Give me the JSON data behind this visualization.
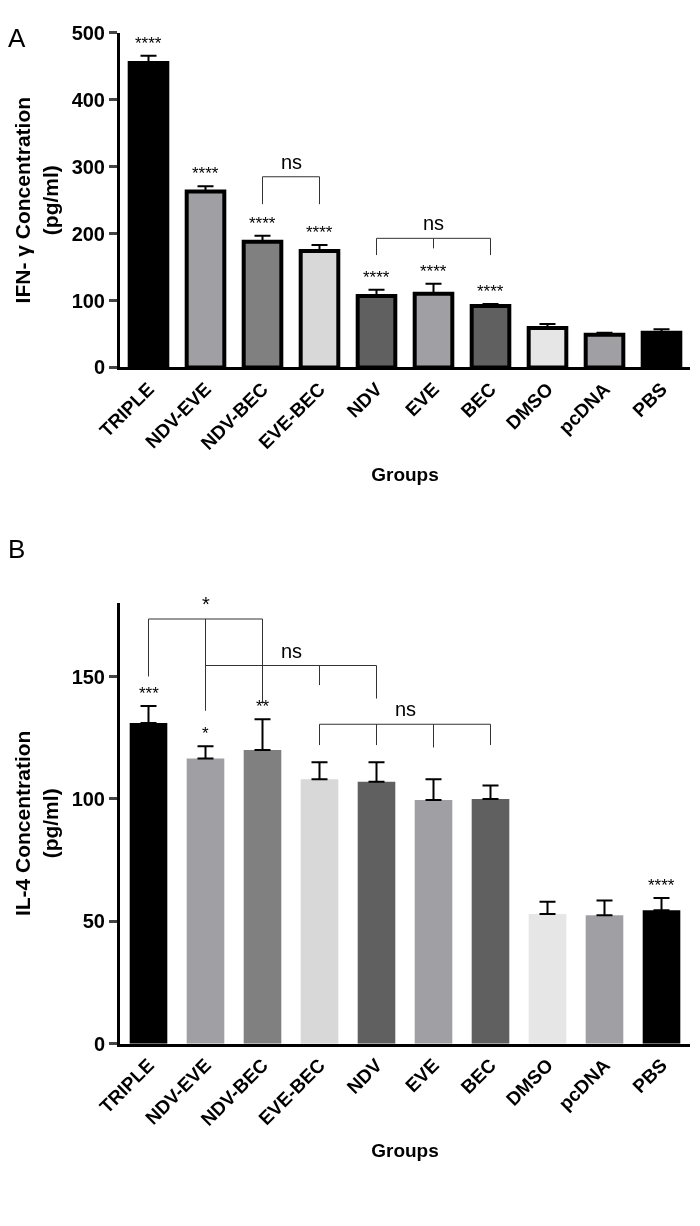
{
  "chart_data": [
    {
      "type": "bar",
      "title": "A",
      "xlabel": "Groups",
      "ylabel": "IFN- γ Concentration\n(pg/ml)",
      "categories": [
        "TRIPLE",
        "NDV-EVE",
        "NDV-BEC",
        "EVE-BEC",
        "NDV",
        "EVE",
        "BEC",
        "DMSO",
        "pcDNA",
        "PBS"
      ],
      "values": [
        455,
        263,
        188,
        174,
        107,
        110,
        92,
        59,
        49,
        52
      ],
      "errors": [
        [
          455,
          466
        ],
        [
          263,
          271
        ],
        [
          188,
          197
        ],
        [
          174,
          183
        ],
        [
          107,
          116
        ],
        [
          110,
          125
        ],
        [
          92,
          95
        ],
        [
          59,
          65
        ],
        [
          49,
          52
        ],
        [
          52,
          57
        ]
      ],
      "colors": [
        "#000000",
        "#a0a0a4",
        "#808080",
        "#d8d8d8",
        "#606060",
        "#a0a0a4",
        "#606060",
        "#e6e6e6",
        "#a0a0a4",
        "#000000"
      ],
      "ylim": [
        0,
        500
      ],
      "yticks": [
        0,
        100,
        200,
        300,
        400,
        500
      ],
      "annotations": [
        {
          "text": "****",
          "x": "TRIPLE",
          "y": 466
        },
        {
          "text": "****",
          "x": "NDV-EVE",
          "y": 271
        },
        {
          "text": "****",
          "x": "NDV-BEC",
          "y": 197
        },
        {
          "text": "****",
          "x": "EVE-BEC",
          "y": 183
        },
        {
          "text": "****",
          "x": "NDV",
          "y": 116
        },
        {
          "text": "****",
          "x": "EVE",
          "y": 125
        },
        {
          "text": "****",
          "x": "BEC",
          "y": 95
        },
        "ns",
        "ns"
      ]
    },
    {
      "type": "bar",
      "title": "B",
      "xlabel": "Groups",
      "ylabel": "IL-4 Concentration\n(pg/ml)",
      "categories": [
        "TRIPLE",
        "NDV-EVE",
        "NDV-BEC",
        "EVE-BEC",
        "NDV",
        "EVE",
        "BEC",
        "DMSO",
        "pcDNA",
        "PBS"
      ],
      "values": [
        131,
        116.5,
        120,
        108,
        107,
        99.5,
        100,
        53,
        52.5,
        54.5
      ],
      "errors": [
        [
          131,
          138
        ],
        [
          116.5,
          121.5
        ],
        [
          120,
          132.5
        ],
        [
          108,
          115
        ],
        [
          107,
          115
        ],
        [
          99.5,
          108
        ],
        [
          100,
          105.5
        ],
        [
          53,
          58
        ],
        [
          52.5,
          58.5
        ],
        [
          54.5,
          59.5
        ]
      ],
      "colors": [
        "#000000",
        "#a0a0a4",
        "#808080",
        "#d8d8d8",
        "#606060",
        "#a0a0a4",
        "#606060",
        "#e6e6e6",
        "#a0a0a4",
        "#000000"
      ],
      "ylim": [
        0,
        180
      ],
      "yticks": [
        0,
        50,
        100,
        150
      ],
      "annotations": [
        {
          "text": "***",
          "x": "TRIPLE",
          "y": 138
        },
        {
          "text": "*",
          "x": "NDV-EVE",
          "y": 121.5
        },
        {
          "text": "**",
          "x": "NDV-BEC",
          "y": 132.5
        },
        {
          "text": "****",
          "x": "PBS",
          "y": 59.5
        },
        "*",
        "ns",
        "ns"
      ]
    }
  ]
}
